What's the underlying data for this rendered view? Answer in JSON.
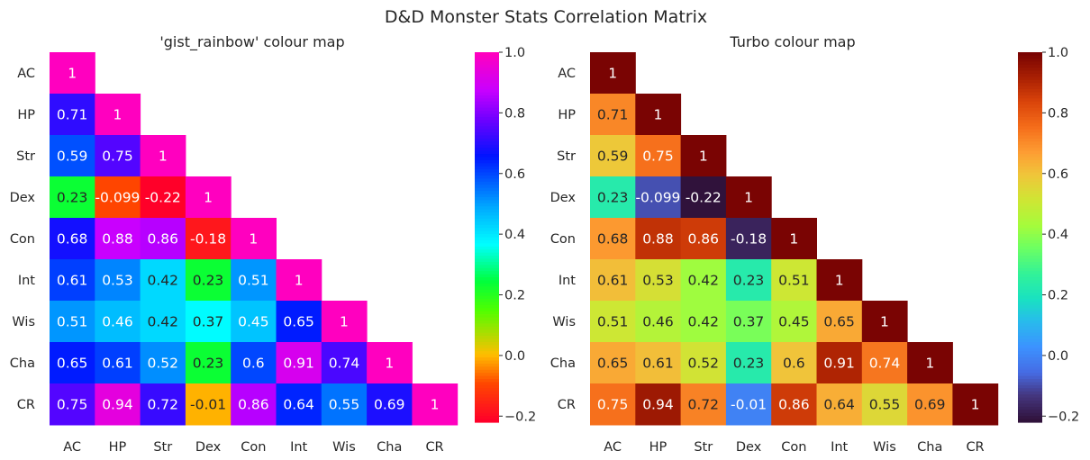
{
  "figure": {
    "title": "D&D Monster Stats Correlation Matrix"
  },
  "chart_data": [
    {
      "type": "heatmap",
      "title": "'gist_rainbow' colour map",
      "colormap": "gist_rainbow",
      "mask": "upper-triangle",
      "labels": [
        "AC",
        "HP",
        "Str",
        "Dex",
        "Con",
        "Int",
        "Wis",
        "Cha",
        "CR"
      ],
      "matrix": [
        [
          1,
          null,
          null,
          null,
          null,
          null,
          null,
          null,
          null
        ],
        [
          0.71,
          1,
          null,
          null,
          null,
          null,
          null,
          null,
          null
        ],
        [
          0.59,
          0.75,
          1,
          null,
          null,
          null,
          null,
          null,
          null
        ],
        [
          0.23,
          -0.099,
          -0.22,
          1,
          null,
          null,
          null,
          null,
          null
        ],
        [
          0.68,
          0.88,
          0.86,
          -0.18,
          1,
          null,
          null,
          null,
          null
        ],
        [
          0.61,
          0.53,
          0.42,
          0.23,
          0.51,
          1,
          null,
          null,
          null
        ],
        [
          0.51,
          0.46,
          0.42,
          0.37,
          0.45,
          0.65,
          1,
          null,
          null
        ],
        [
          0.65,
          0.61,
          0.52,
          0.23,
          0.6,
          0.91,
          0.74,
          1,
          null
        ],
        [
          0.75,
          0.94,
          0.72,
          -0.01,
          0.86,
          0.64,
          0.55,
          0.69,
          1
        ]
      ],
      "vmin": -0.22,
      "vmax": 1,
      "colorbar_ticks": [
        "1.0",
        "0.8",
        "0.6",
        "0.4",
        "0.2",
        "0.0",
        "−0.2"
      ],
      "colorbar_tick_values": [
        1.0,
        0.8,
        0.6,
        0.4,
        0.2,
        0.0,
        -0.2
      ]
    },
    {
      "type": "heatmap",
      "title": "Turbo colour map",
      "colormap": "turbo",
      "mask": "upper-triangle",
      "labels": [
        "AC",
        "HP",
        "Str",
        "Dex",
        "Con",
        "Int",
        "Wis",
        "Cha",
        "CR"
      ],
      "matrix": [
        [
          1,
          null,
          null,
          null,
          null,
          null,
          null,
          null,
          null
        ],
        [
          0.71,
          1,
          null,
          null,
          null,
          null,
          null,
          null,
          null
        ],
        [
          0.59,
          0.75,
          1,
          null,
          null,
          null,
          null,
          null,
          null
        ],
        [
          0.23,
          -0.099,
          -0.22,
          1,
          null,
          null,
          null,
          null,
          null
        ],
        [
          0.68,
          0.88,
          0.86,
          -0.18,
          1,
          null,
          null,
          null,
          null
        ],
        [
          0.61,
          0.53,
          0.42,
          0.23,
          0.51,
          1,
          null,
          null,
          null
        ],
        [
          0.51,
          0.46,
          0.42,
          0.37,
          0.45,
          0.65,
          1,
          null,
          null
        ],
        [
          0.65,
          0.61,
          0.52,
          0.23,
          0.6,
          0.91,
          0.74,
          1,
          null
        ],
        [
          0.75,
          0.94,
          0.72,
          -0.01,
          0.86,
          0.64,
          0.55,
          0.69,
          1
        ]
      ],
      "vmin": -0.22,
      "vmax": 1,
      "colorbar_ticks": [
        "1.0",
        "0.8",
        "0.6",
        "0.4",
        "0.2",
        "0.0",
        "−0.2"
      ],
      "colorbar_tick_values": [
        1.0,
        0.8,
        0.6,
        0.4,
        0.2,
        0.0,
        -0.2
      ]
    }
  ]
}
